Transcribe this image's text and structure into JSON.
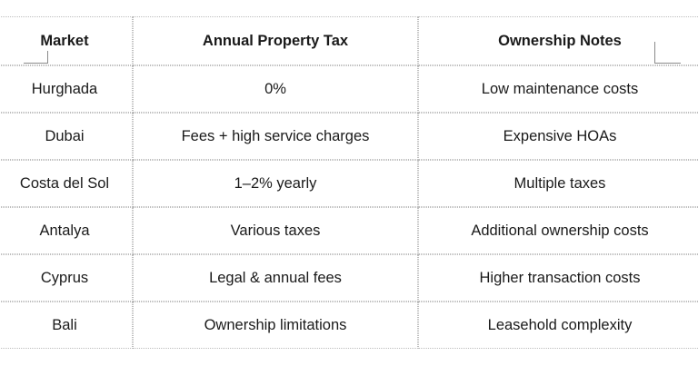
{
  "table": {
    "headers": [
      "Market",
      "Annual Property Tax",
      "Ownership Notes"
    ],
    "rows": [
      [
        "Hurghada",
        "0%",
        "Low maintenance costs"
      ],
      [
        "Dubai",
        "Fees + high service charges",
        "Expensive HOAs"
      ],
      [
        "Costa del Sol",
        "1–2% yearly",
        "Multiple taxes"
      ],
      [
        "Antalya",
        "Various taxes",
        "Additional ownership costs"
      ],
      [
        "Cyprus",
        "Legal & annual fees",
        "Higher transaction costs"
      ],
      [
        "Bali",
        "Ownership limitations",
        "Leasehold complexity"
      ]
    ]
  }
}
